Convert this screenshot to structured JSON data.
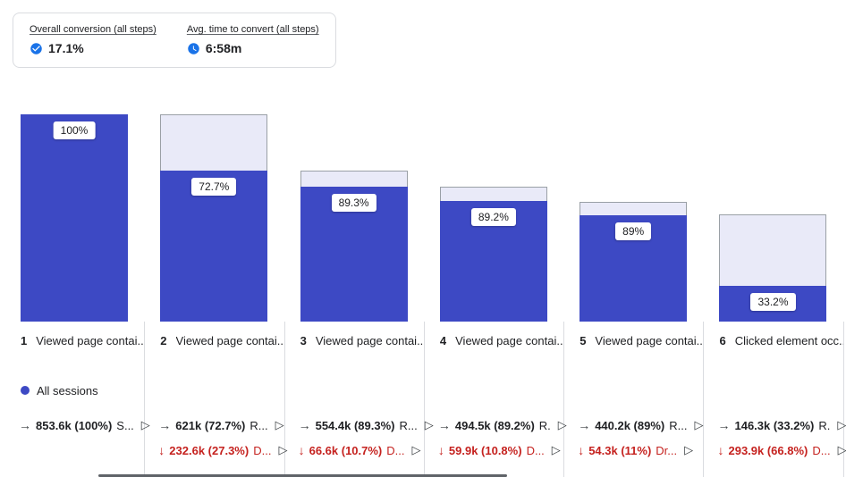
{
  "card": {
    "metrics": [
      {
        "label": "Overall conversion (all steps)",
        "value": "17.1%",
        "icon": "check-circle"
      },
      {
        "label": "Avg. time to convert (all steps)",
        "value": "6:58m",
        "icon": "clock"
      }
    ]
  },
  "legend": {
    "label": "All sessions"
  },
  "icons": {
    "complete_arrow": "→",
    "abandon_arrow": "↓",
    "play": "▷"
  },
  "colors": {
    "bar_fill": "#3d49c4",
    "bar_track": "#e9eaf8",
    "bar_border": "#9aa0a6",
    "metric_icon_blue": "#1a73e8",
    "abandon_red": "#c5221f",
    "divider": "#dadce0",
    "text": "#202124"
  },
  "chart_data": {
    "type": "bar",
    "subtype": "funnel",
    "series": "All sessions",
    "overall_conversion": "17.1%",
    "avg_time_to_convert": "6:58m",
    "steps": [
      {
        "num": "1",
        "label": "Viewed page contai...",
        "bar_pct_label": "100%",
        "bar_total_rel": 1.0,
        "bar_fill_frac": 1.0,
        "completed": {
          "value": "853.6k (100%)",
          "tail": "S..."
        },
        "abandoned": null
      },
      {
        "num": "2",
        "label": "Viewed page contai...",
        "bar_pct_label": "72.7%",
        "bar_total_rel": 1.0,
        "bar_fill_frac": 0.727,
        "completed": {
          "value": "621k (72.7%)",
          "tail": "R..."
        },
        "abandoned": {
          "value": "232.6k (27.3%)",
          "tail": "D..."
        }
      },
      {
        "num": "3",
        "label": "Viewed page contai...",
        "bar_pct_label": "89.3%",
        "bar_total_rel": 0.727,
        "bar_fill_frac": 0.893,
        "completed": {
          "value": "554.4k (89.3%)",
          "tail": "R..."
        },
        "abandoned": {
          "value": "66.6k (10.7%)",
          "tail": "D..."
        }
      },
      {
        "num": "4",
        "label": "Viewed page contai...",
        "bar_pct_label": "89.2%",
        "bar_total_rel": 0.649,
        "bar_fill_frac": 0.892,
        "completed": {
          "value": "494.5k (89.2%)",
          "tail": "R."
        },
        "abandoned": {
          "value": "59.9k (10.8%)",
          "tail": "D..."
        }
      },
      {
        "num": "5",
        "label": "Viewed page contai...",
        "bar_pct_label": "89%",
        "bar_total_rel": 0.579,
        "bar_fill_frac": 0.89,
        "completed": {
          "value": "440.2k (89%)",
          "tail": "R..."
        },
        "abandoned": {
          "value": "54.3k (11%)",
          "tail": "Dr..."
        }
      },
      {
        "num": "6",
        "label": "Clicked element occ...",
        "bar_pct_label": "33.2%",
        "bar_total_rel": 0.516,
        "bar_fill_frac": 0.332,
        "completed": {
          "value": "146.3k (33.2%)",
          "tail": "R."
        },
        "abandoned": {
          "value": "293.9k (66.8%)",
          "tail": "D..."
        }
      }
    ]
  }
}
